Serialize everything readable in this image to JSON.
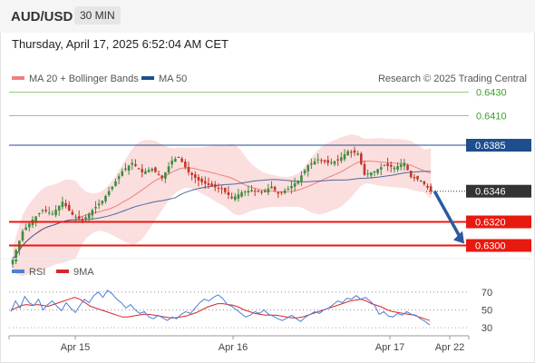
{
  "header": {
    "pair": "AUD/USD",
    "timeframe": "30 MIN",
    "datetime": "Thursday, April 17, 2025 6:52:04 AM CET"
  },
  "legend": {
    "ma20": "MA 20 + Bollinger Bands",
    "ma50": "MA 50",
    "credit": "Research © 2025 Trading Central",
    "rsi": "RSI",
    "ma9": "9MA"
  },
  "colors": {
    "up": "#3f8c3f",
    "down": "#c0392b",
    "ma20": "#f08080",
    "ma50": "#1f4e8c",
    "bands": "#f9d3d3",
    "green_level": "#8fcb7d",
    "blue_level": "#1f4e8c",
    "red_level": "#e8190f",
    "price_tag": "#333333",
    "rsi": "#4f7fd6",
    "rsi_ma": "#d62728"
  },
  "chart_data": {
    "type": "candlestick",
    "symbol": "AUD/USD",
    "interval": "30 MIN",
    "ylim": [
      0.6285,
      0.6445
    ],
    "x_tick_labels": [
      "Apr 15",
      "Apr 16",
      "Apr 17",
      "Apr 22"
    ],
    "levels": [
      {
        "value": 0.643,
        "label": "0.6430",
        "style": "green"
      },
      {
        "value": 0.641,
        "label": "0.6410",
        "style": "green"
      },
      {
        "value": 0.6385,
        "label": "0.6385",
        "style": "blue"
      },
      {
        "value": 0.6346,
        "label": "0.6346",
        "style": "current"
      },
      {
        "value": 0.632,
        "label": "0.6320",
        "style": "red"
      },
      {
        "value": 0.63,
        "label": "0.6300",
        "style": "red"
      }
    ],
    "anchors": [
      [
        0,
        0.6288
      ],
      [
        3,
        0.6312
      ],
      [
        6,
        0.6322
      ],
      [
        9,
        0.633
      ],
      [
        12,
        0.6327
      ],
      [
        15,
        0.6337
      ],
      [
        18,
        0.6326
      ],
      [
        21,
        0.6321
      ],
      [
        24,
        0.633
      ],
      [
        27,
        0.6338
      ],
      [
        30,
        0.635
      ],
      [
        33,
        0.6363
      ],
      [
        36,
        0.637
      ],
      [
        39,
        0.6362
      ],
      [
        42,
        0.6365
      ],
      [
        45,
        0.6357
      ],
      [
        48,
        0.6372
      ],
      [
        50,
        0.6375
      ],
      [
        53,
        0.6362
      ],
      [
        56,
        0.6355
      ],
      [
        60,
        0.635
      ],
      [
        63,
        0.6348
      ],
      [
        66,
        0.634
      ],
      [
        69,
        0.6345
      ],
      [
        72,
        0.6347
      ],
      [
        75,
        0.6345
      ],
      [
        78,
        0.635
      ],
      [
        80,
        0.6344
      ],
      [
        83,
        0.6348
      ],
      [
        86,
        0.6355
      ],
      [
        89,
        0.6368
      ],
      [
        92,
        0.6373
      ],
      [
        95,
        0.637
      ],
      [
        98,
        0.6372
      ],
      [
        101,
        0.638
      ],
      [
        104,
        0.6378
      ],
      [
        106,
        0.636
      ],
      [
        109,
        0.6363
      ],
      [
        112,
        0.6368
      ],
      [
        115,
        0.6366
      ],
      [
        118,
        0.637
      ],
      [
        120,
        0.6358
      ],
      [
        123,
        0.6355
      ],
      [
        126,
        0.6346
      ]
    ],
    "forecast": {
      "from": 0.6346,
      "to": 0.63
    },
    "rsi": {
      "ylim": [
        25,
        80
      ],
      "ticks": [
        70,
        50,
        30
      ],
      "values": [
        48,
        60,
        52,
        65,
        58,
        55,
        62,
        50,
        56,
        60,
        54,
        49,
        58,
        52,
        47,
        55,
        62,
        58,
        66,
        70,
        64,
        72,
        68,
        62,
        58,
        52,
        56,
        50,
        46,
        48,
        42,
        40,
        44,
        41,
        38,
        42,
        40,
        45,
        48,
        46,
        52,
        58,
        62,
        60,
        64,
        67,
        63,
        56,
        54,
        50,
        46,
        42,
        44,
        48,
        46,
        50,
        45,
        43,
        40,
        38,
        41,
        44,
        40,
        37,
        42,
        45,
        48,
        46,
        50,
        52,
        56,
        60,
        58,
        63,
        62,
        66,
        62,
        64,
        60,
        55,
        45,
        48,
        43,
        42,
        46,
        44,
        48,
        45,
        44,
        40,
        37,
        33
      ],
      "ma9": [
        50,
        52,
        55,
        56,
        55,
        56,
        55,
        54,
        56,
        58,
        60,
        62,
        64,
        62,
        58,
        54,
        52,
        50,
        48,
        46,
        44,
        42,
        42,
        43,
        44,
        45,
        45,
        44,
        43,
        42,
        41,
        41,
        42,
        43,
        45,
        47,
        50,
        53,
        55,
        57,
        57,
        56,
        55,
        53,
        50,
        48,
        46,
        45,
        44,
        44,
        44,
        43,
        42,
        41,
        41,
        42,
        44,
        46,
        48,
        50,
        52,
        54,
        56,
        58,
        60,
        61,
        62,
        60,
        57,
        55,
        53,
        50,
        48,
        47,
        46,
        45,
        44,
        42,
        40,
        38
      ]
    }
  }
}
